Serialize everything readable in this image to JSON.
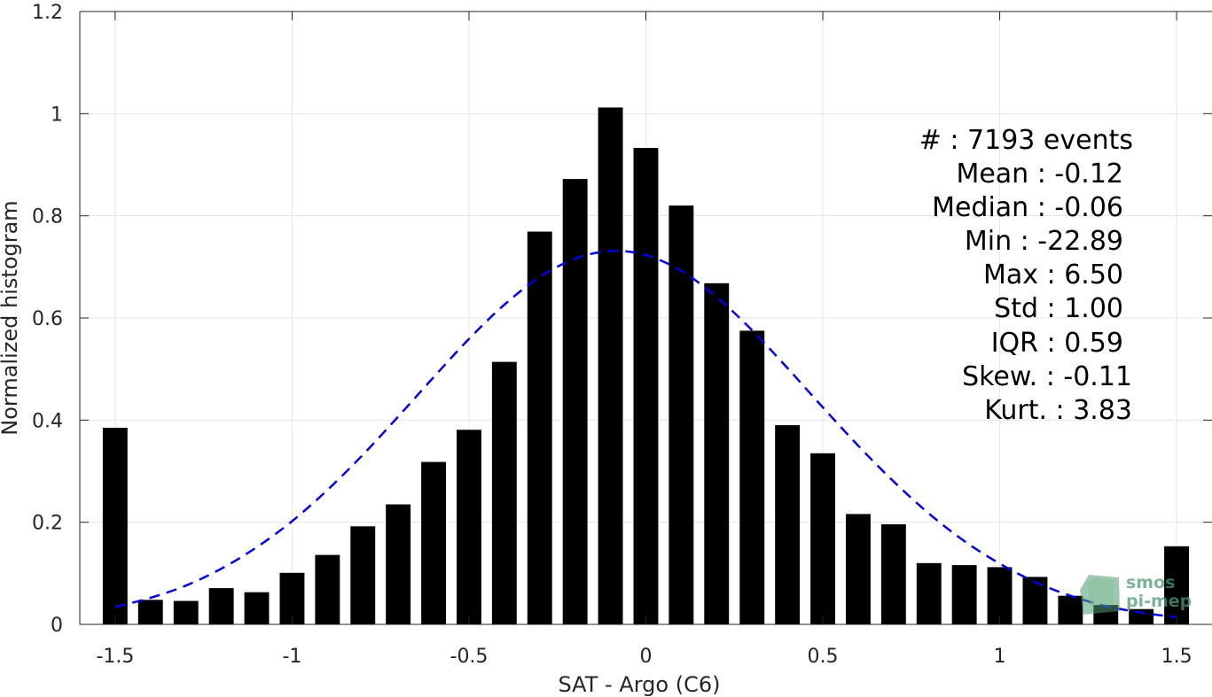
{
  "chart_data": {
    "type": "bar",
    "xlabel": "SAT - Argo (C6)",
    "ylabel": "Normalized histogram",
    "xlim": [
      -1.6,
      1.6
    ],
    "ylim": [
      0,
      1.2
    ],
    "xticks": [
      -1.5,
      -1,
      -0.5,
      0,
      0.5,
      1,
      1.5
    ],
    "xtick_labels": [
      "-1.5",
      "-1",
      "-0.5",
      "0",
      "0.5",
      "1",
      "1.5"
    ],
    "yticks": [
      0,
      0.2,
      0.4,
      0.6,
      0.8,
      1,
      1.2
    ],
    "ytick_labels": [
      "0",
      "0.2",
      "0.4",
      "0.6",
      "0.8",
      "1",
      "1.2"
    ],
    "grid": true,
    "bar_width": 0.07,
    "x": [
      -1.5,
      -1.4,
      -1.3,
      -1.2,
      -1.1,
      -1.0,
      -0.9,
      -0.8,
      -0.7,
      -0.6,
      -0.5,
      -0.4,
      -0.3,
      -0.2,
      -0.1,
      0.0,
      0.1,
      0.2,
      0.3,
      0.4,
      0.5,
      0.6,
      0.7,
      0.8,
      0.9,
      1.0,
      1.1,
      1.2,
      1.3,
      1.4,
      1.5
    ],
    "values": [
      0.385,
      0.048,
      0.046,
      0.071,
      0.063,
      0.101,
      0.136,
      0.192,
      0.235,
      0.318,
      0.381,
      0.514,
      0.769,
      0.872,
      1.012,
      0.933,
      0.82,
      0.668,
      0.575,
      0.39,
      0.335,
      0.216,
      0.196,
      0.12,
      0.116,
      0.112,
      0.093,
      0.056,
      0.038,
      0.03,
      0.153
    ],
    "bar_color": "#000000",
    "fit_curve": {
      "style": "dashed",
      "color": "#0000e6",
      "x": [
        -1.5,
        -1.4,
        -1.3,
        -1.2,
        -1.1,
        -1.0,
        -0.9,
        -0.8,
        -0.7,
        -0.6,
        -0.5,
        -0.4,
        -0.3,
        -0.2,
        -0.1,
        0.0,
        0.1,
        0.2,
        0.3,
        0.4,
        0.5,
        0.6,
        0.7,
        0.8,
        0.9,
        1.0,
        1.1,
        1.2,
        1.3,
        1.4,
        1.5
      ],
      "y": [
        0.034,
        0.052,
        0.076,
        0.109,
        0.151,
        0.202,
        0.263,
        0.332,
        0.407,
        0.484,
        0.559,
        0.626,
        0.68,
        0.716,
        0.731,
        0.723,
        0.692,
        0.641,
        0.576,
        0.502,
        0.425,
        0.35,
        0.28,
        0.217,
        0.163,
        0.119,
        0.083,
        0.056,
        0.036,
        0.023,
        0.014
      ]
    },
    "annotations": [
      "#  : 7193 events",
      "Mean : -0.12",
      "Median : -0.06",
      "Min : -22.89",
      "Max : 6.50",
      "Std : 1.00",
      "IQR : 0.59",
      "Skew. : -0.11",
      "Kurt. : 3.83"
    ],
    "watermark": [
      "smos",
      "pi-mep"
    ]
  }
}
